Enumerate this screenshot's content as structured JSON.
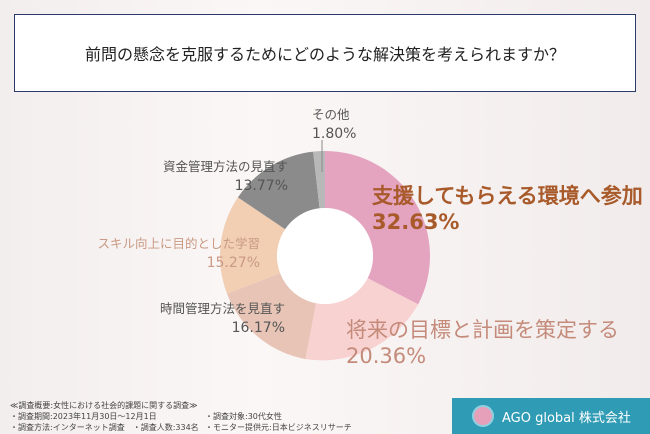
{
  "title": "前問の懸念を克服するためにどのような解決策を考えられますか？",
  "chart_data": {
    "type": "pie",
    "donut": true,
    "categories": [
      "支援してもらえる環境へ参加",
      "将来の目標と計画を策定する",
      "時間管理方法を見直す",
      "スキル向上に目的とした学習",
      "資金管理方法の見直す",
      "その他"
    ],
    "values": [
      32.63,
      20.36,
      16.17,
      15.27,
      13.77,
      1.8
    ],
    "labels": [
      "32.63%",
      "20.36%",
      "16.17%",
      "15.27%",
      "13.77%",
      "1.80%"
    ],
    "colors": [
      "#e4a4bf",
      "#f8d2d0",
      "#e7c4b6",
      "#f2ceb3",
      "#8b8b8b",
      "#b8b8b8"
    ]
  },
  "footer": {
    "lines": [
      "≪調査概要:女性における社会的課題に関する調査≫",
      "・調査期間:2023年11月30日〜12月1日",
      "・調査方法:インターネット調査　・調査人数:334名"
    ],
    "lines2": [
      "・調査対象:30代女性",
      "・モニター提供元:日本ビジネスリサーチ"
    ],
    "brand": "AGO global 株式会社"
  }
}
